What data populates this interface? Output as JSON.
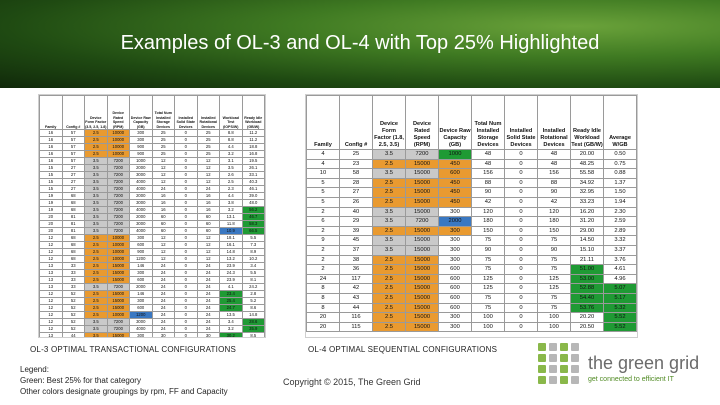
{
  "slide": {
    "title": "Examples of OL-3 and OL-4 with Top 25% Highlighted",
    "caption_ol3": "OL-3 OPTIMAL TRANSACTIONAL CONFIGURATIONS",
    "caption_ol4": "OL-4 OPTIMAL SEQUENTIAL CONFIGURATIONS",
    "legend_title": "Legend:",
    "legend_green": "Green:  Best 25% for that category",
    "legend_other": "Other colors designate groupings by rpm, FF and Capacity",
    "copyright": "Copyright © 2015, The Green Grid"
  },
  "logo": {
    "name": "the green grid",
    "tagline": "get connected to efficient IT",
    "dot_colors": [
      "#8ab84a",
      "#b7b7b7",
      "#8ab84a",
      "#b7b7b7",
      "#8ab84a",
      "#b7b7b7",
      "#8ab84a",
      "#b7b7b7",
      "#8ab84a",
      "#b7b7b7",
      "#8ab84a",
      "#b7b7b7",
      "#8ab84a",
      "#b7b7b7",
      "#8ab84a",
      "#b7b7b7"
    ]
  },
  "ol3_table": {
    "headers": [
      "Family",
      "Config #",
      "Device Form Factor (3.5, 2.5, 1.8)",
      "Device Rated Speed (RPM)",
      "Device Raw Capacity (GB)",
      "Total Num Installed Storage Devices",
      "Installed Solid State Devices",
      "Installed Rotational Devices",
      "Workload Test (IOPS/W)",
      "Ready Idle Workload (GB/W)"
    ],
    "rows": [
      [
        "16",
        "57",
        "2.5",
        "10000",
        "300",
        "25",
        "0",
        "25",
        "8.8",
        "11.2"
      ],
      [
        "16",
        "57",
        "2.5",
        "10000",
        "300",
        "25",
        "0",
        "25",
        "8.8",
        "11.2"
      ],
      [
        "16",
        "57",
        "2.5",
        "10000",
        "900",
        "25",
        "0",
        "25",
        "4.4",
        "18.8"
      ],
      [
        "16",
        "57",
        "2.5",
        "10000",
        "900",
        "25",
        "0",
        "25",
        "3.2",
        "16.8"
      ],
      [
        "16",
        "57",
        "3.5",
        "7200",
        "1000",
        "12",
        "0",
        "12",
        "3.1",
        "19.5"
      ],
      [
        "15",
        "27",
        "3.5",
        "7200",
        "2000",
        "12",
        "0",
        "12",
        "3.5",
        "26.1"
      ],
      [
        "15",
        "27",
        "3.5",
        "7200",
        "3000",
        "12",
        "0",
        "12",
        "2.6",
        "33.1"
      ],
      [
        "15",
        "27",
        "3.5",
        "7200",
        "4000",
        "12",
        "0",
        "12",
        "2.5",
        "40.3"
      ],
      [
        "15",
        "27",
        "3.5",
        "7200",
        "4000",
        "24",
        "0",
        "24",
        "2.3",
        "46.1"
      ],
      [
        "19",
        "68",
        "3.5",
        "7200",
        "2000",
        "16",
        "0",
        "16",
        "4.4",
        "39.0"
      ],
      [
        "19",
        "68",
        "3.5",
        "7200",
        "3000",
        "16",
        "0",
        "16",
        "3.8",
        "48.0"
      ],
      [
        "19",
        "68",
        "3.5",
        "7200",
        "4000",
        "16",
        "0",
        "16",
        "3.2",
        "56.2"
      ],
      [
        "20",
        "81",
        "3.5",
        "7200",
        "2000",
        "60",
        "0",
        "60",
        "13.1",
        "46.7"
      ],
      [
        "20",
        "81",
        "3.5",
        "7200",
        "3000",
        "60",
        "0",
        "60",
        "11.8",
        "58.3"
      ],
      [
        "20",
        "81",
        "3.5",
        "7200",
        "4000",
        "60",
        "0",
        "60",
        "10.9",
        "66.5"
      ],
      [
        "12",
        "68",
        "2.5",
        "10000",
        "300",
        "12",
        "0",
        "12",
        "18.1",
        "5.5"
      ],
      [
        "12",
        "68",
        "2.5",
        "10000",
        "600",
        "12",
        "0",
        "12",
        "16.1",
        "7.3"
      ],
      [
        "12",
        "68",
        "2.5",
        "10000",
        "900",
        "12",
        "0",
        "12",
        "14.8",
        "8.9"
      ],
      [
        "12",
        "68",
        "2.5",
        "10000",
        "1200",
        "12",
        "0",
        "12",
        "13.2",
        "10.2"
      ],
      [
        "13",
        "33",
        "2.5",
        "15000",
        "146",
        "24",
        "0",
        "24",
        "23.9",
        "3.4"
      ],
      [
        "13",
        "33",
        "2.5",
        "15000",
        "300",
        "24",
        "0",
        "24",
        "24.3",
        "5.5"
      ],
      [
        "13",
        "33",
        "2.5",
        "15000",
        "600",
        "24",
        "0",
        "24",
        "23.9",
        "8.1"
      ],
      [
        "13",
        "33",
        "3.5",
        "7200",
        "2000",
        "24",
        "0",
        "24",
        "4.1",
        "24.2"
      ],
      [
        "12",
        "52",
        "2.5",
        "15000",
        "146",
        "24",
        "0",
        "24",
        "23.4",
        "2.8"
      ],
      [
        "12",
        "52",
        "2.5",
        "15000",
        "300",
        "24",
        "0",
        "24",
        "25.4",
        "5.2"
      ],
      [
        "12",
        "52",
        "2.5",
        "15000",
        "600",
        "24",
        "0",
        "24",
        "24.7",
        "8.6"
      ],
      [
        "12",
        "52",
        "2.5",
        "10000",
        "1200",
        "24",
        "0",
        "24",
        "13.5",
        "14.8"
      ],
      [
        "12",
        "52",
        "3.5",
        "7200",
        "3000",
        "24",
        "0",
        "24",
        "3.4",
        "28.6"
      ],
      [
        "12",
        "52",
        "3.5",
        "7200",
        "4000",
        "24",
        "0",
        "24",
        "3.2",
        "35.9"
      ],
      [
        "13",
        "44",
        "3.5",
        "15000",
        "300",
        "30",
        "0",
        "30",
        "30.2",
        "8.5"
      ],
      [
        "13",
        "44",
        "3.5",
        "15000",
        "600",
        "30",
        "0",
        "30",
        "29.4",
        "13.4"
      ],
      [
        "13",
        "44",
        "3.5",
        "15000",
        "900",
        "30",
        "0",
        "30",
        "27.1",
        "18.7"
      ],
      [
        "13",
        "44",
        "2.5",
        "10000",
        "600",
        "30",
        "0",
        "30",
        "21.8",
        "12.9"
      ],
      [
        "13",
        "44",
        "2.5",
        "10000",
        "900",
        "30",
        "0",
        "30",
        "19.8",
        "15.5"
      ],
      [
        "13",
        "33",
        "2.5",
        "10000",
        "900",
        "24",
        "0",
        "24",
        "17.7",
        "13.7"
      ],
      [
        "13",
        "33",
        "2.5",
        "10000",
        "1200",
        "24",
        "0",
        "24",
        "16.3",
        "15.8"
      ]
    ],
    "row_classes": [
      [
        "",
        "",
        "orange",
        "orange",
        "",
        "",
        "",
        "",
        "",
        ""
      ],
      [
        "",
        "",
        "orange",
        "orange",
        "",
        "",
        "",
        "",
        "",
        ""
      ],
      [
        "",
        "",
        "orange",
        "orange",
        "",
        "",
        "",
        "",
        "",
        ""
      ],
      [
        "",
        "",
        "orange",
        "orange",
        "",
        "",
        "",
        "",
        "",
        ""
      ],
      [
        "",
        "",
        "gray",
        "gray",
        "",
        "",
        "",
        "",
        "",
        ""
      ],
      [
        "",
        "",
        "gray",
        "gray",
        "",
        "",
        "",
        "",
        "",
        ""
      ],
      [
        "",
        "",
        "gray",
        "gray",
        "",
        "",
        "",
        "",
        "",
        ""
      ],
      [
        "",
        "",
        "gray",
        "gray",
        "",
        "",
        "",
        "",
        "",
        ""
      ],
      [
        "",
        "",
        "gray",
        "gray",
        "",
        "",
        "",
        "",
        "",
        ""
      ],
      [
        "",
        "",
        "gray",
        "gray",
        "",
        "",
        "",
        "",
        "",
        ""
      ],
      [
        "",
        "",
        "gray",
        "gray",
        "",
        "",
        "",
        "",
        "",
        ""
      ],
      [
        "",
        "",
        "gray",
        "gray",
        "",
        "",
        "",
        "",
        "",
        "green"
      ],
      [
        "",
        "",
        "gray",
        "gray",
        "",
        "",
        "",
        "",
        "",
        "green"
      ],
      [
        "",
        "",
        "gray",
        "gray",
        "",
        "",
        "",
        "",
        "",
        "green"
      ],
      [
        "",
        "",
        "gray",
        "gray",
        "",
        "",
        "",
        "",
        "blue",
        "green"
      ],
      [
        "",
        "",
        "orange",
        "orange",
        "",
        "",
        "",
        "",
        "",
        ""
      ],
      [
        "",
        "",
        "orange",
        "orange",
        "",
        "",
        "",
        "",
        "",
        ""
      ],
      [
        "",
        "",
        "orange",
        "orange",
        "",
        "",
        "",
        "",
        "",
        ""
      ],
      [
        "",
        "",
        "orange",
        "orange",
        "",
        "",
        "",
        "",
        "",
        ""
      ],
      [
        "",
        "",
        "orange",
        "orange",
        "",
        "",
        "",
        "",
        "",
        ""
      ],
      [
        "",
        "",
        "orange",
        "orange",
        "",
        "",
        "",
        "",
        "",
        ""
      ],
      [
        "",
        "",
        "orange",
        "orange",
        "",
        "",
        "",
        "",
        "",
        ""
      ],
      [
        "",
        "",
        "gray",
        "gray",
        "",
        "",
        "",
        "",
        "",
        ""
      ],
      [
        "",
        "",
        "orange",
        "orange",
        "",
        "",
        "",
        "",
        "green",
        ""
      ],
      [
        "",
        "",
        "orange",
        "orange",
        "",
        "",
        "",
        "",
        "green",
        ""
      ],
      [
        "",
        "",
        "orange",
        "orange",
        "",
        "",
        "",
        "",
        "green",
        ""
      ],
      [
        "",
        "",
        "orange",
        "orange",
        "blue",
        "",
        "",
        "",
        "",
        ""
      ],
      [
        "",
        "",
        "gray",
        "gray",
        "",
        "",
        "",
        "",
        "",
        "green"
      ],
      [
        "",
        "",
        "gray",
        "gray",
        "",
        "",
        "",
        "",
        "",
        "green"
      ],
      [
        "",
        "",
        "orange",
        "orange",
        "",
        "",
        "",
        "",
        "green",
        ""
      ],
      [
        "",
        "",
        "orange",
        "orange",
        "",
        "",
        "",
        "",
        "green",
        ""
      ],
      [
        "",
        "",
        "orange",
        "orange",
        "",
        "",
        "",
        "",
        "green",
        ""
      ],
      [
        "",
        "",
        "orange",
        "orange",
        "",
        "",
        "",
        "",
        "green",
        ""
      ],
      [
        "",
        "",
        "orange",
        "orange",
        "",
        "",
        "",
        "",
        "green",
        ""
      ],
      [
        "",
        "",
        "orange",
        "orange",
        "",
        "",
        "",
        "",
        "green",
        ""
      ],
      [
        "",
        "",
        "orange",
        "orange",
        "",
        "",
        "",
        "",
        "green",
        ""
      ]
    ]
  },
  "ol4_table": {
    "headers": [
      "Family",
      "Config #",
      "Device Form Factor (1.8, 2.5, 3.5)",
      "Device Rated Speed (RPM)",
      "Device Raw Capacity (GB)",
      "Total Num Installed Storage Devices",
      "Installed Solid State Devices",
      "Installed Rotational Devices",
      "Ready Idle Workload Test (GB/W)",
      "Average W/GB"
    ],
    "rows": [
      [
        "4",
        "25",
        "3.5",
        "7200",
        "1000",
        "48",
        "0",
        "48",
        "20.00",
        "0.50"
      ],
      [
        "4",
        "23",
        "2.5",
        "15000",
        "450",
        "48",
        "0",
        "48",
        "48.25",
        "0.75"
      ],
      [
        "10",
        "58",
        "3.5",
        "15000",
        "600",
        "156",
        "0",
        "156",
        "55.58",
        "0.88"
      ],
      [
        "5",
        "28",
        "2.5",
        "15000",
        "450",
        "88",
        "0",
        "88",
        "34.92",
        "1.37"
      ],
      [
        "5",
        "27",
        "2.5",
        "15000",
        "450",
        "90",
        "0",
        "90",
        "32.95",
        "1.50"
      ],
      [
        "5",
        "26",
        "2.5",
        "15000",
        "450",
        "42",
        "0",
        "42",
        "33.23",
        "1.94"
      ],
      [
        "2",
        "40",
        "3.5",
        "15000",
        "300",
        "120",
        "0",
        "120",
        "16.20",
        "2.30"
      ],
      [
        "6",
        "29",
        "3.5",
        "7200",
        "2000",
        "180",
        "0",
        "180",
        "31.20",
        "2.59"
      ],
      [
        "2",
        "39",
        "2.5",
        "15000",
        "300",
        "150",
        "0",
        "150",
        "29.00",
        "2.89"
      ],
      [
        "9",
        "45",
        "3.5",
        "15000",
        "300",
        "75",
        "0",
        "75",
        "14.50",
        "3.32"
      ],
      [
        "2",
        "37",
        "3.5",
        "15000",
        "300",
        "90",
        "0",
        "90",
        "15.10",
        "3.37"
      ],
      [
        "2",
        "38",
        "2.5",
        "15000",
        "300",
        "75",
        "0",
        "75",
        "21.11",
        "3.76"
      ],
      [
        "2",
        "36",
        "2.5",
        "15000",
        "600",
        "75",
        "0",
        "75",
        "51.00",
        "4.61"
      ],
      [
        "24",
        "117",
        "2.5",
        "15000",
        "600",
        "125",
        "0",
        "125",
        "53.00",
        "4.96"
      ],
      [
        "8",
        "42",
        "2.5",
        "15000",
        "600",
        "125",
        "0",
        "125",
        "52.88",
        "5.07"
      ],
      [
        "8",
        "43",
        "2.5",
        "15000",
        "600",
        "75",
        "0",
        "75",
        "54.40",
        "5.17"
      ],
      [
        "8",
        "44",
        "2.5",
        "15000",
        "600",
        "75",
        "0",
        "75",
        "53.76",
        "5.32"
      ],
      [
        "20",
        "116",
        "2.5",
        "15000",
        "300",
        "100",
        "0",
        "100",
        "20.20",
        "5.52"
      ],
      [
        "20",
        "115",
        "2.5",
        "15000",
        "300",
        "100",
        "0",
        "100",
        "20.50",
        "5.52"
      ]
    ],
    "row_classes": [
      [
        "",
        "",
        "gray",
        "gray",
        "green",
        "",
        "",
        "",
        "",
        ""
      ],
      [
        "",
        "",
        "orange",
        "orange",
        "orange",
        "",
        "",
        "",
        "",
        ""
      ],
      [
        "",
        "",
        "gray",
        "gray",
        "orange",
        "",
        "",
        "",
        "",
        ""
      ],
      [
        "",
        "",
        "orange",
        "orange",
        "orange",
        "",
        "",
        "",
        "",
        ""
      ],
      [
        "",
        "",
        "orange",
        "orange",
        "orange",
        "",
        "",
        "",
        "",
        ""
      ],
      [
        "",
        "",
        "orange",
        "orange",
        "orange",
        "",
        "",
        "",
        "",
        ""
      ],
      [
        "",
        "",
        "gray",
        "gray",
        "",
        "",
        "",
        "",
        "",
        ""
      ],
      [
        "",
        "",
        "gray",
        "gray",
        "blue",
        "",
        "",
        "",
        "",
        ""
      ],
      [
        "",
        "",
        "orange",
        "orange",
        "orange",
        "",
        "",
        "",
        "",
        ""
      ],
      [
        "",
        "",
        "gray",
        "gray",
        "",
        "",
        "",
        "",
        "",
        ""
      ],
      [
        "",
        "",
        "gray",
        "gray",
        "",
        "",
        "",
        "",
        "",
        ""
      ],
      [
        "",
        "",
        "orange",
        "orange",
        "",
        "",
        "",
        "",
        "",
        ""
      ],
      [
        "",
        "",
        "orange",
        "orange",
        "",
        "",
        "",
        "",
        "green",
        ""
      ],
      [
        "",
        "",
        "orange",
        "orange",
        "",
        "",
        "",
        "",
        "green",
        ""
      ],
      [
        "",
        "",
        "orange",
        "orange",
        "",
        "",
        "",
        "",
        "green",
        "green"
      ],
      [
        "",
        "",
        "orange",
        "orange",
        "",
        "",
        "",
        "",
        "green",
        "green"
      ],
      [
        "",
        "",
        "orange",
        "orange",
        "",
        "",
        "",
        "",
        "green",
        "green"
      ],
      [
        "",
        "",
        "orange",
        "orange",
        "",
        "",
        "",
        "",
        "",
        "green"
      ],
      [
        "",
        "",
        "orange",
        "orange",
        "",
        "",
        "",
        "",
        "",
        "green"
      ]
    ]
  }
}
